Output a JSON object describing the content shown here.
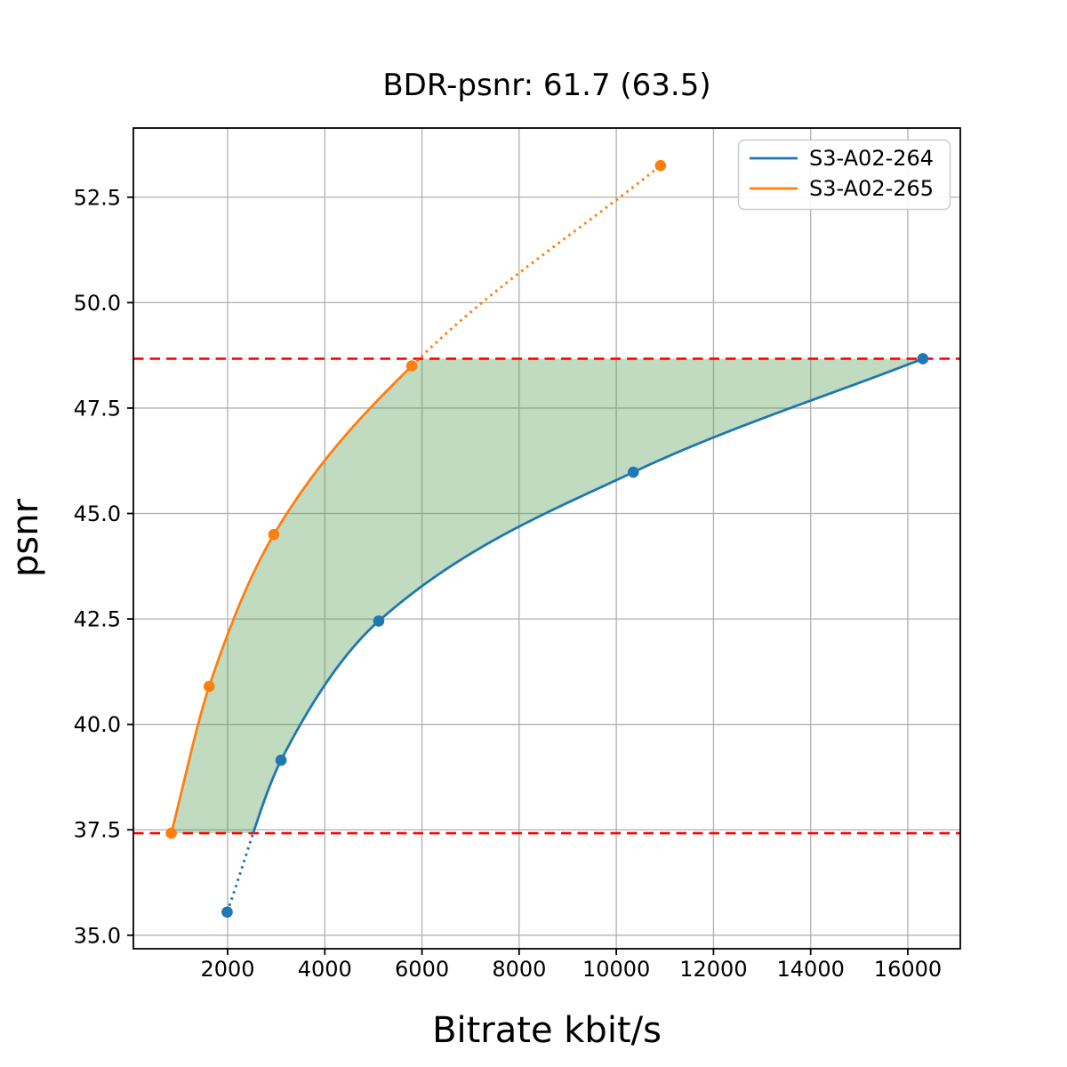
{
  "chart_data": {
    "type": "line",
    "title": "BDR-psnr: 61.7 (63.5)",
    "xlabel": "Bitrate kbit/s",
    "ylabel": "psnr",
    "xlim": [
      60,
      17080
    ],
    "ylim": [
      34.68,
      54.14
    ],
    "grid": true,
    "legend_position": "upper right",
    "x_ticks": [
      2000,
      4000,
      6000,
      8000,
      10000,
      12000,
      14000,
      16000
    ],
    "x_tick_labels": [
      "2000",
      "4000",
      "6000",
      "8000",
      "10000",
      "12000",
      "14000",
      "16000"
    ],
    "y_ticks": [
      35.0,
      37.5,
      40.0,
      42.5,
      45.0,
      47.5,
      50.0,
      52.5
    ],
    "y_tick_labels": [
      "35.0",
      "37.5",
      "40.0",
      "42.5",
      "45.0",
      "47.5",
      "50.0",
      "52.5"
    ],
    "series": [
      {
        "name": "S3-A02-264",
        "color": "#1f77b4",
        "points": [
          [
            1990,
            35.55
          ],
          [
            3100,
            39.15
          ],
          [
            5110,
            42.45
          ],
          [
            10350,
            45.98
          ],
          [
            16310,
            48.67
          ]
        ],
        "dotted_below_psnr": 37.42
      },
      {
        "name": "S3-A02-265",
        "color": "#ff7f0e",
        "points": [
          [
            840,
            37.42
          ],
          [
            1620,
            40.9
          ],
          [
            2950,
            44.5
          ],
          [
            5790,
            48.5
          ],
          [
            10910,
            53.25
          ]
        ],
        "dotted_after_point_index": 3
      }
    ],
    "hlines": [
      {
        "psnr": 37.42,
        "color": "#ff0000",
        "style": "dashed"
      },
      {
        "psnr": 48.67,
        "color": "#ff0000",
        "style": "dashed"
      }
    ],
    "shaded_region": {
      "description": "area between the two rate-distortion curves clipped between the red dashed psnr bounds",
      "color": "#559e55",
      "opacity": 0.37
    },
    "colors": {
      "grid": "#b0b0b0",
      "frame": "#000000",
      "legend_border": "#cccccc",
      "legend_background": "#ffffff"
    }
  }
}
